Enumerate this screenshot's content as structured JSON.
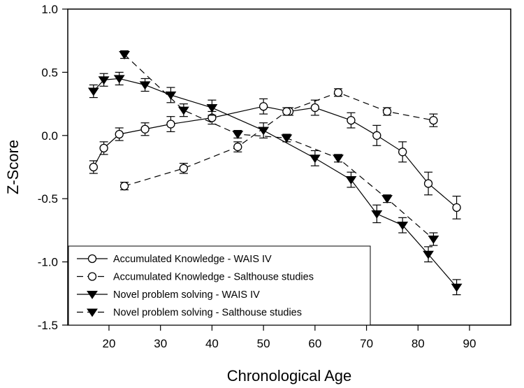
{
  "chart_data": {
    "type": "line",
    "xlabel": "Chronological Age",
    "ylabel": "Z-Score",
    "xlim": [
      12,
      98
    ],
    "ylim": [
      -1.5,
      1.0
    ],
    "xticks": [
      20,
      30,
      40,
      50,
      60,
      70,
      80,
      90
    ],
    "yticks": [
      -1.5,
      -1.0,
      -0.5,
      0.0,
      0.5,
      1.0
    ],
    "ytick_labels": [
      "-1.5",
      "-1.0",
      "-0.5",
      "0.0",
      "0.5",
      "1.0"
    ],
    "grid": false,
    "legend_position": "bottom-left",
    "series": [
      {
        "name": "Accumulated Knowledge - WAIS IV",
        "marker": "circle-open",
        "line": "solid",
        "x": [
          17,
          19,
          22,
          27,
          32,
          40,
          50,
          55,
          60,
          67,
          72,
          77,
          82,
          87.5
        ],
        "y": [
          -0.25,
          -0.1,
          0.01,
          0.05,
          0.09,
          0.14,
          0.23,
          0.19,
          0.22,
          0.12,
          0.0,
          -0.13,
          -0.38,
          -0.57
        ],
        "err": [
          0.05,
          0.05,
          0.05,
          0.05,
          0.06,
          0.05,
          0.06,
          0.03,
          0.06,
          0.06,
          0.08,
          0.08,
          0.09,
          0.09
        ]
      },
      {
        "name": "Accumulated Knowledge - Salthouse studies",
        "marker": "circle-open",
        "line": "dashed",
        "x": [
          23,
          34.5,
          45,
          54.5,
          64.5,
          74,
          83
        ],
        "y": [
          -0.4,
          -0.26,
          -0.09,
          0.19,
          0.34,
          0.19,
          0.12
        ],
        "err": [
          0.03,
          0.04,
          0.04,
          0.03,
          0.03,
          0.03,
          0.05
        ]
      },
      {
        "name": "Novel problem solving - WAIS IV",
        "marker": "triangle-down-filled",
        "line": "solid",
        "x": [
          17,
          19,
          22,
          27,
          32,
          40,
          50,
          60,
          67,
          72,
          77,
          82,
          87.5
        ],
        "y": [
          0.35,
          0.44,
          0.45,
          0.4,
          0.32,
          0.22,
          0.04,
          -0.18,
          -0.35,
          -0.62,
          -0.71,
          -0.94,
          -1.2
        ],
        "err": [
          0.05,
          0.05,
          0.05,
          0.05,
          0.06,
          0.06,
          0.06,
          0.06,
          0.06,
          0.07,
          0.06,
          0.06,
          0.06
        ]
      },
      {
        "name": "Novel problem solving - Salthouse studies",
        "marker": "triangle-down-filled",
        "line": "dashed",
        "x": [
          23,
          34.5,
          45,
          54.5,
          64.5,
          74,
          83
        ],
        "y": [
          0.64,
          0.2,
          0.01,
          -0.02,
          -0.18,
          -0.5,
          -0.82
        ],
        "err": [
          0.03,
          0.05,
          0.03,
          0.03,
          0.03,
          0.03,
          0.05
        ]
      }
    ]
  }
}
